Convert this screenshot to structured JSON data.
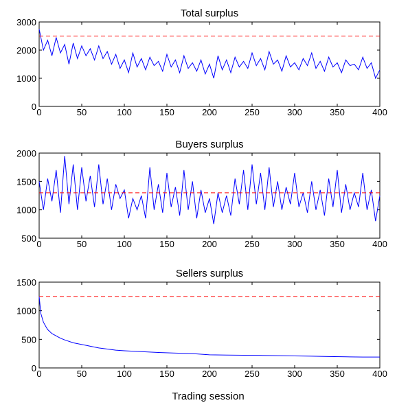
{
  "colors": {
    "series": "#0000ff",
    "reference": "#ff0000",
    "axes": "#000000"
  },
  "xlabel": "Trading session",
  "chart_data": [
    {
      "type": "line",
      "title": "Total surplus",
      "xlim": [
        0,
        400
      ],
      "ylim": [
        0,
        3000
      ],
      "xticks": [
        0,
        50,
        100,
        150,
        200,
        250,
        300,
        350,
        400
      ],
      "yticks": [
        0,
        1000,
        2000,
        3000
      ],
      "reference_line": {
        "y": 2500,
        "style": "dashed",
        "color": "#ff0000"
      },
      "series": [
        {
          "style": "solid",
          "color": "#0000ff",
          "x": [
            0,
            5,
            10,
            15,
            20,
            25,
            30,
            35,
            40,
            45,
            50,
            55,
            60,
            65,
            70,
            75,
            80,
            85,
            90,
            95,
            100,
            105,
            110,
            115,
            120,
            125,
            130,
            135,
            140,
            145,
            150,
            155,
            160,
            165,
            170,
            175,
            180,
            185,
            190,
            195,
            200,
            205,
            210,
            215,
            220,
            225,
            230,
            235,
            240,
            245,
            250,
            255,
            260,
            265,
            270,
            275,
            280,
            285,
            290,
            295,
            300,
            305,
            310,
            315,
            320,
            325,
            330,
            335,
            340,
            345,
            350,
            355,
            360,
            365,
            370,
            375,
            380,
            385,
            390,
            395,
            400
          ],
          "y": [
            2750,
            2000,
            2350,
            1800,
            2450,
            1900,
            2200,
            1500,
            2250,
            1700,
            2150,
            1800,
            2050,
            1650,
            2150,
            1700,
            1950,
            1500,
            1850,
            1350,
            1650,
            1200,
            1900,
            1400,
            1700,
            1300,
            1750,
            1450,
            1600,
            1250,
            1850,
            1400,
            1650,
            1200,
            1800,
            1350,
            1550,
            1250,
            1650,
            1150,
            1500,
            1000,
            1800,
            1300,
            1650,
            1200,
            1750,
            1400,
            1600,
            1350,
            1900,
            1450,
            1700,
            1300,
            1950,
            1500,
            1650,
            1250,
            1800,
            1400,
            1550,
            1300,
            1700,
            1450,
            1900,
            1350,
            1600,
            1250,
            1750,
            1400,
            1550,
            1200,
            1650,
            1450,
            1500,
            1300,
            1750,
            1350,
            1550,
            1000,
            1300
          ]
        }
      ]
    },
    {
      "type": "line",
      "title": "Buyers surplus",
      "xlim": [
        0,
        400
      ],
      "ylim": [
        500,
        2000
      ],
      "xticks": [
        0,
        50,
        100,
        150,
        200,
        250,
        300,
        350,
        400
      ],
      "yticks": [
        500,
        1000,
        1500,
        2000
      ],
      "reference_line": {
        "y": 1300,
        "style": "dashed",
        "color": "#ff0000"
      },
      "series": [
        {
          "style": "solid",
          "color": "#0000ff",
          "x": [
            0,
            5,
            10,
            15,
            20,
            25,
            30,
            35,
            40,
            45,
            50,
            55,
            60,
            65,
            70,
            75,
            80,
            85,
            90,
            95,
            100,
            105,
            110,
            115,
            120,
            125,
            130,
            135,
            140,
            145,
            150,
            155,
            160,
            165,
            170,
            175,
            180,
            185,
            190,
            195,
            200,
            205,
            210,
            215,
            220,
            225,
            230,
            235,
            240,
            245,
            250,
            255,
            260,
            265,
            270,
            275,
            280,
            285,
            290,
            295,
            300,
            305,
            310,
            315,
            320,
            325,
            330,
            335,
            340,
            345,
            350,
            355,
            360,
            365,
            370,
            375,
            380,
            385,
            390,
            395,
            400
          ],
          "y": [
            1500,
            1000,
            1550,
            1150,
            1700,
            950,
            1950,
            1100,
            1800,
            1000,
            1750,
            1150,
            1600,
            1050,
            1800,
            1100,
            1550,
            1000,
            1450,
            1200,
            1350,
            850,
            1200,
            1000,
            1250,
            850,
            1750,
            1000,
            1450,
            950,
            1650,
            1050,
            1400,
            900,
            1700,
            1000,
            1500,
            850,
            1350,
            950,
            1200,
            750,
            1300,
            950,
            1250,
            900,
            1550,
            1100,
            1700,
            1000,
            1800,
            1100,
            1650,
            1000,
            1750,
            1050,
            1500,
            1000,
            1400,
            1100,
            1650,
            1050,
            1300,
            950,
            1500,
            1000,
            1350,
            900,
            1550,
            1050,
            1700,
            950,
            1450,
            1000,
            1300,
            1050,
            1650,
            1000,
            1350,
            800,
            1250
          ]
        }
      ]
    },
    {
      "type": "line",
      "title": "Sellers surplus",
      "xlim": [
        0,
        400
      ],
      "ylim": [
        0,
        1500
      ],
      "xticks": [
        0,
        50,
        100,
        150,
        200,
        250,
        300,
        350,
        400
      ],
      "yticks": [
        0,
        500,
        1000,
        1500
      ],
      "reference_line": {
        "y": 1250,
        "style": "dashed",
        "color": "#ff0000"
      },
      "series": [
        {
          "style": "solid",
          "color": "#0000ff",
          "x": [
            0,
            2,
            5,
            8,
            10,
            15,
            20,
            25,
            30,
            40,
            50,
            60,
            70,
            80,
            90,
            100,
            120,
            140,
            160,
            180,
            200,
            220,
            240,
            260,
            280,
            300,
            320,
            340,
            360,
            380,
            400
          ],
          "y": [
            1250,
            950,
            800,
            720,
            670,
            600,
            560,
            520,
            490,
            440,
            410,
            380,
            350,
            330,
            310,
            300,
            285,
            270,
            260,
            250,
            230,
            225,
            222,
            220,
            215,
            210,
            205,
            200,
            195,
            190,
            190
          ]
        }
      ]
    }
  ]
}
